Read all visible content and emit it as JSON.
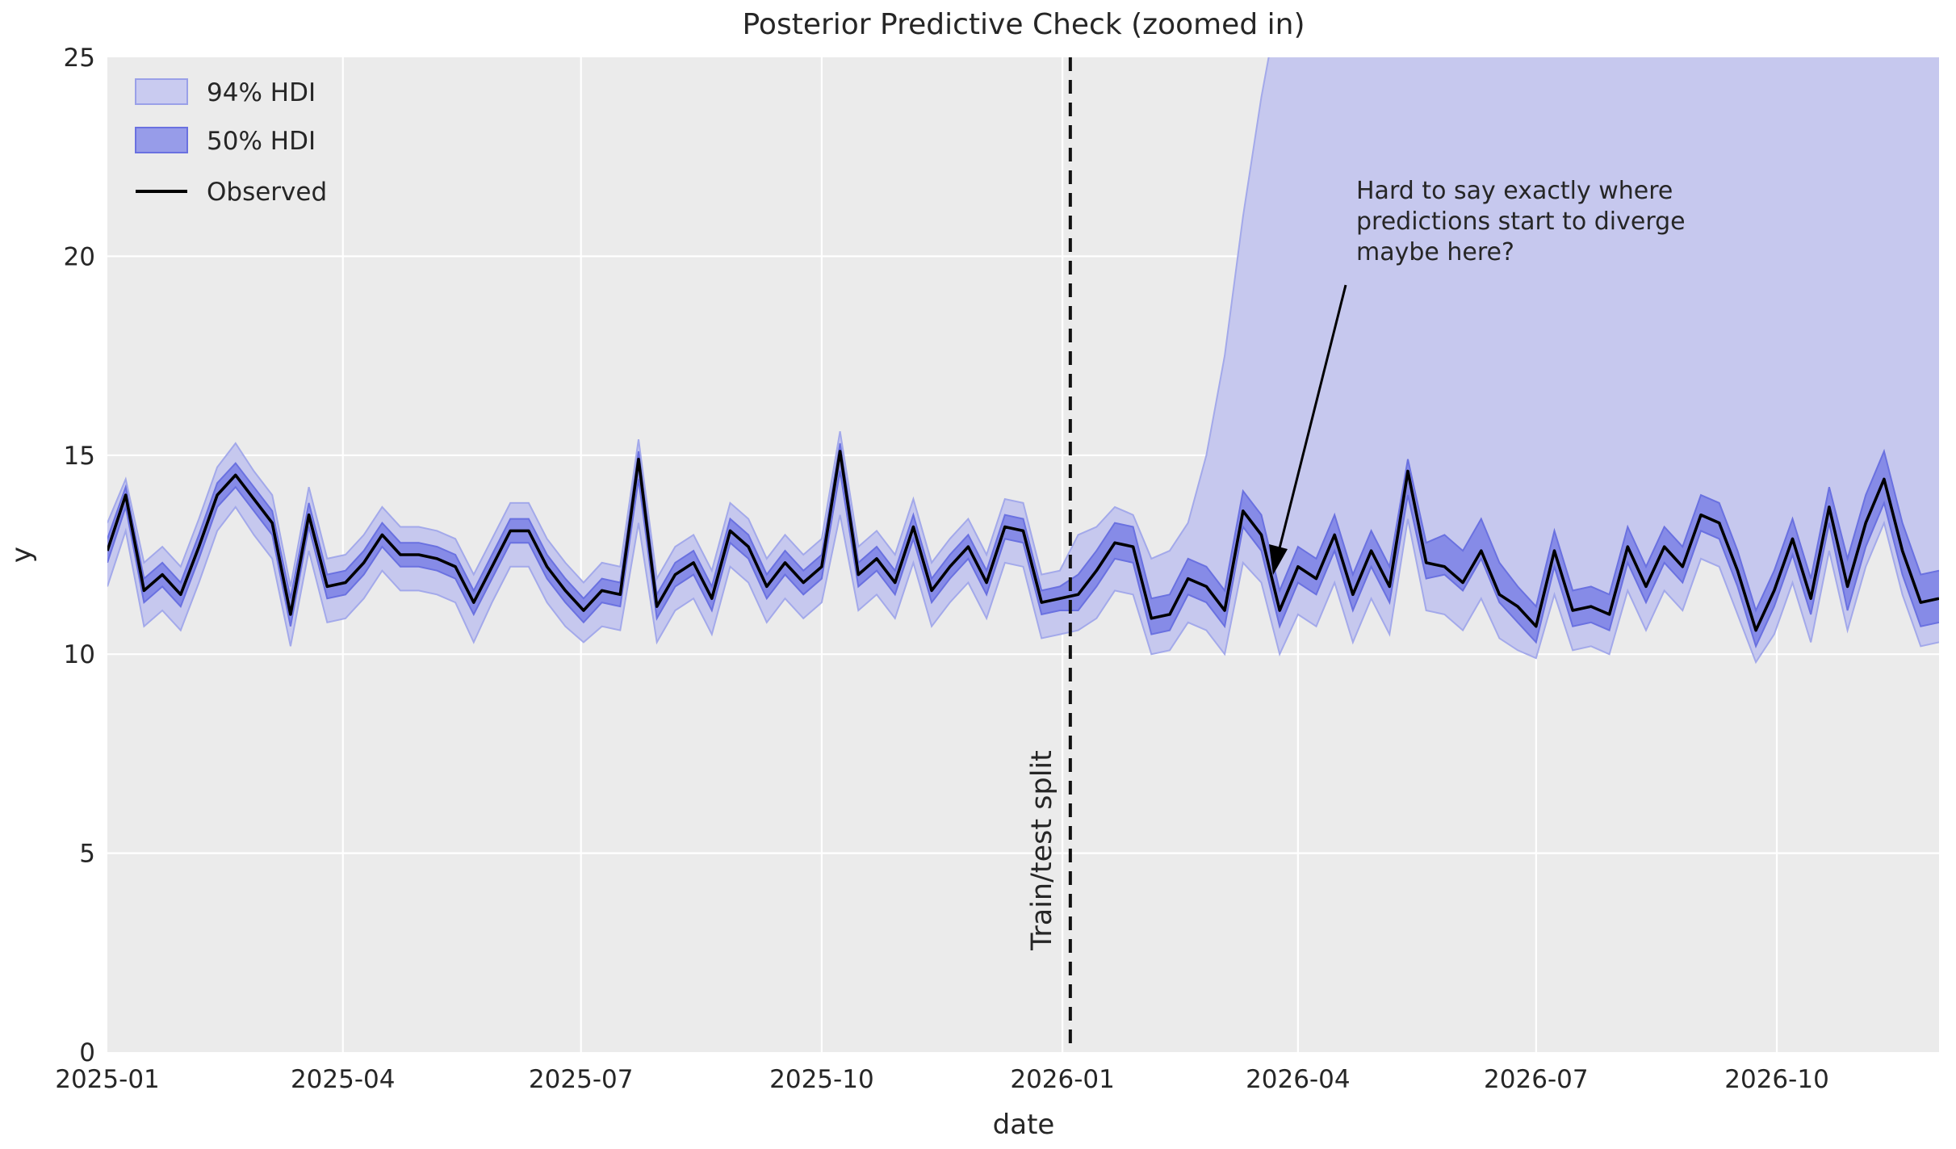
{
  "title": "Posterior Predictive Check (zoomed in)",
  "axes": {
    "xlabel": "date",
    "ylabel": "y"
  },
  "legend": {
    "items": [
      {
        "label": "94% HDI",
        "type": "band",
        "fill": "#c9cbf0",
        "edge": "#9aa0e8"
      },
      {
        "label": "50% HDI",
        "type": "band",
        "fill": "#979ce9",
        "edge": "#6a71e0"
      },
      {
        "label": "Observed",
        "type": "line",
        "color": "#000000"
      }
    ]
  },
  "split_line": {
    "label": "Train/test split",
    "date": "2026-01-04"
  },
  "annotation": {
    "lines": [
      "Hard to say exactly where",
      "predictions start to diverge",
      "maybe here?"
    ]
  },
  "colors": {
    "plot_background": "#ebebeb",
    "grid": "#ffffff",
    "hdi94_fill": "#c6c8ee",
    "hdi94_edge": "#a3a9ea",
    "hdi50_fill": "#868be7",
    "hdi50_edge": "#6a71e0",
    "observed": "#000000",
    "split": "#111111",
    "text": "#262626"
  },
  "chart_data": {
    "type": "line",
    "title": "Posterior Predictive Check (zoomed in)",
    "xlabel": "date",
    "ylabel": "y",
    "ylim": [
      0,
      25
    ],
    "yticks": [
      0,
      5,
      10,
      15,
      20,
      25
    ],
    "x_start_date": "2025-01-01",
    "x_step_days": 7,
    "x_domain_days": [
      0,
      700
    ],
    "split_day": 368,
    "grid": true,
    "legend_position": "upper left",
    "xticks": [
      {
        "day": 0,
        "label": "2025-01"
      },
      {
        "day": 90,
        "label": "2025-04"
      },
      {
        "day": 181,
        "label": "2025-07"
      },
      {
        "day": 273,
        "label": "2025-10"
      },
      {
        "day": 365,
        "label": "2026-01"
      },
      {
        "day": 455,
        "label": "2026-04"
      },
      {
        "day": 546,
        "label": "2026-07"
      },
      {
        "day": 638,
        "label": "2026-10"
      }
    ],
    "series": {
      "observed": [
        12.6,
        14.0,
        11.6,
        12.0,
        11.5,
        12.7,
        14.0,
        14.5,
        13.9,
        13.3,
        11.0,
        13.5,
        11.7,
        11.8,
        12.3,
        13.0,
        12.5,
        12.5,
        12.4,
        12.2,
        11.3,
        12.2,
        13.1,
        13.1,
        12.2,
        11.6,
        11.1,
        11.6,
        11.5,
        14.9,
        11.2,
        12.0,
        12.3,
        11.4,
        13.1,
        12.7,
        11.7,
        12.3,
        11.8,
        12.2,
        15.1,
        12.0,
        12.4,
        11.8,
        13.2,
        11.6,
        12.2,
        12.7,
        11.8,
        13.2,
        13.1,
        11.3,
        11.4,
        11.5,
        12.1,
        12.8,
        12.7,
        10.9,
        11.0,
        11.9,
        11.7,
        11.1,
        13.6,
        13.0,
        11.1,
        12.2,
        11.9,
        13.0,
        11.5,
        12.6,
        11.7,
        14.6,
        12.3,
        12.2,
        11.8,
        12.6,
        11.5,
        11.2,
        10.7,
        12.6,
        11.1,
        11.2,
        11.0,
        12.7,
        11.7,
        12.7,
        12.2,
        13.5,
        13.3,
        12.1,
        10.6,
        11.6,
        12.9,
        11.4,
        13.7,
        11.7,
        13.3,
        14.4,
        12.6,
        11.3,
        11.4
      ],
      "hdi50_lower": [
        12.3,
        13.7,
        11.3,
        11.7,
        11.2,
        12.4,
        13.7,
        14.2,
        13.6,
        13.0,
        10.7,
        13.2,
        11.4,
        11.5,
        12.0,
        12.7,
        12.2,
        12.2,
        12.1,
        11.9,
        11.0,
        11.9,
        12.8,
        12.8,
        11.9,
        11.3,
        10.8,
        11.3,
        11.2,
        14.4,
        10.9,
        11.7,
        12.0,
        11.1,
        12.8,
        12.4,
        11.4,
        12.0,
        11.5,
        11.9,
        14.6,
        11.7,
        12.1,
        11.5,
        12.9,
        11.3,
        11.9,
        12.4,
        11.5,
        12.9,
        12.8,
        11.0,
        11.1,
        11.1,
        11.7,
        12.4,
        12.3,
        10.5,
        10.6,
        11.5,
        11.3,
        10.7,
        13.2,
        12.6,
        10.7,
        11.8,
        11.5,
        12.6,
        11.1,
        12.2,
        11.3,
        14.0,
        11.9,
        12.0,
        11.6,
        12.4,
        11.3,
        10.8,
        10.3,
        12.2,
        10.7,
        10.8,
        10.6,
        12.3,
        11.3,
        12.3,
        11.8,
        13.1,
        12.9,
        11.7,
        10.2,
        11.2,
        12.5,
        11.0,
        13.3,
        11.1,
        12.7,
        13.8,
        12.0,
        10.7,
        10.8
      ],
      "hdi50_upper": [
        12.9,
        14.2,
        11.9,
        12.3,
        11.8,
        13.0,
        14.3,
        14.8,
        14.2,
        13.6,
        11.4,
        13.8,
        12.0,
        12.1,
        12.6,
        13.3,
        12.8,
        12.8,
        12.7,
        12.5,
        11.6,
        12.5,
        13.4,
        13.4,
        12.5,
        11.9,
        11.4,
        11.9,
        11.8,
        15.1,
        11.5,
        12.3,
        12.6,
        11.7,
        13.4,
        13.0,
        12.0,
        12.6,
        12.1,
        12.5,
        15.3,
        12.3,
        12.7,
        12.1,
        13.5,
        11.9,
        12.5,
        13.0,
        12.1,
        13.5,
        13.4,
        11.6,
        11.7,
        12.0,
        12.6,
        13.3,
        13.2,
        11.4,
        11.5,
        12.4,
        12.2,
        11.6,
        14.1,
        13.5,
        11.6,
        12.7,
        12.4,
        13.5,
        12.0,
        13.1,
        12.2,
        14.9,
        12.8,
        13.0,
        12.6,
        13.4,
        12.3,
        11.7,
        11.2,
        13.1,
        11.6,
        11.7,
        11.5,
        13.2,
        12.2,
        13.2,
        12.7,
        14.0,
        13.8,
        12.6,
        11.1,
        12.1,
        13.4,
        11.9,
        14.2,
        12.4,
        14.0,
        15.1,
        13.3,
        12.0,
        12.1
      ],
      "hdi94_lower": [
        11.7,
        13.1,
        10.7,
        11.1,
        10.6,
        11.8,
        13.1,
        13.7,
        13.0,
        12.4,
        10.2,
        12.6,
        10.8,
        10.9,
        11.4,
        12.1,
        11.6,
        11.6,
        11.5,
        11.3,
        10.3,
        11.3,
        12.2,
        12.2,
        11.3,
        10.7,
        10.3,
        10.7,
        10.6,
        13.3,
        10.3,
        11.1,
        11.4,
        10.5,
        12.2,
        11.8,
        10.8,
        11.4,
        10.9,
        11.3,
        13.5,
        11.1,
        11.5,
        10.9,
        12.3,
        10.7,
        11.3,
        11.8,
        10.9,
        12.3,
        12.2,
        10.4,
        10.5,
        10.6,
        10.9,
        11.6,
        11.5,
        10.0,
        10.1,
        10.8,
        10.6,
        10.0,
        12.3,
        11.8,
        10.0,
        11.0,
        10.7,
        11.8,
        10.3,
        11.4,
        10.5,
        13.4,
        11.1,
        11.0,
        10.6,
        11.4,
        10.4,
        10.1,
        9.9,
        11.5,
        10.1,
        10.2,
        10.0,
        11.6,
        10.6,
        11.6,
        11.1,
        12.4,
        12.2,
        11.0,
        9.8,
        10.5,
        11.8,
        10.3,
        12.6,
        10.6,
        12.2,
        13.3,
        11.5,
        10.2,
        10.3
      ],
      "hdi94_upper": [
        13.3,
        14.4,
        12.3,
        12.7,
        12.2,
        13.4,
        14.7,
        15.3,
        14.6,
        14.0,
        11.7,
        14.2,
        12.4,
        12.5,
        13.0,
        13.7,
        13.2,
        13.2,
        13.1,
        12.9,
        12.0,
        12.9,
        13.8,
        13.8,
        12.9,
        12.3,
        11.8,
        12.3,
        12.2,
        15.4,
        11.9,
        12.7,
        13.0,
        12.1,
        13.8,
        13.4,
        12.4,
        13.0,
        12.5,
        12.9,
        15.6,
        12.7,
        13.1,
        12.5,
        13.9,
        12.3,
        12.9,
        13.4,
        12.5,
        13.9,
        13.8,
        12.0,
        12.1,
        13.0,
        13.2,
        13.7,
        13.5,
        12.4,
        12.6,
        13.3,
        15.0,
        17.5,
        21.0,
        24.0,
        26.5,
        28.0,
        28.0,
        28.0,
        28.0,
        28.0,
        28.0,
        28.0,
        28.0,
        28.0,
        28.0,
        28.0,
        28.0,
        28.0,
        28.0,
        28.0,
        28.0,
        28.0,
        28.0,
        28.0,
        28.0,
        28.0,
        28.0,
        28.0,
        28.0,
        28.0,
        28.0,
        28.0,
        28.0,
        28.0,
        28.0,
        28.0,
        28.0,
        28.0,
        28.0,
        28.0,
        28.0
      ]
    }
  }
}
